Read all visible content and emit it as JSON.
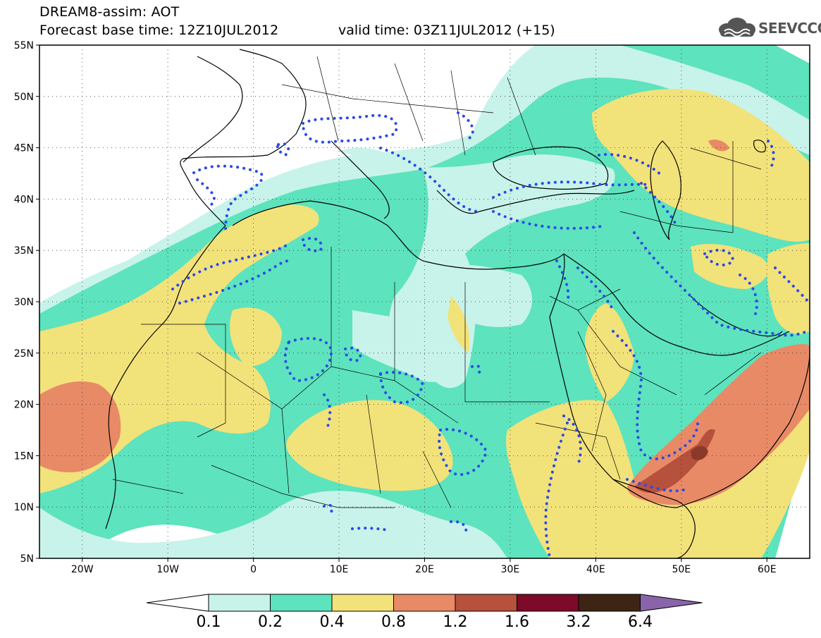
{
  "header": {
    "title": "DREAM8-assim: AOT",
    "forecast_base": "Forecast base time: 12Z10JUL2012",
    "valid_time": "valid time: 03Z11JUL2012 (+15)"
  },
  "logo": {
    "text": "SEEVCCC",
    "icon": "cloud-icon"
  },
  "map": {
    "lon_range": [
      -25,
      65
    ],
    "lat_range": [
      5,
      55
    ],
    "lat_labels": [
      "55N",
      "50N",
      "45N",
      "40N",
      "35N",
      "30N",
      "25N",
      "20N",
      "15N",
      "10N",
      "5N"
    ],
    "lon_labels": [
      "20W",
      "10W",
      "0",
      "10E",
      "20E",
      "30E",
      "40E",
      "50E",
      "60E"
    ],
    "background_color": "#5de3bd"
  },
  "colorbar": {
    "labels": [
      "0.1",
      "0.2",
      "0.4",
      "0.8",
      "1.2",
      "1.6",
      "3.2",
      "6.4"
    ],
    "colors": [
      "#c8f3ea",
      "#5de3bd",
      "#f2e27a",
      "#e88a66",
      "#b5513c",
      "#7c0a28",
      "#3d2414",
      "#8a64aa"
    ],
    "under_color": "#ffffff"
  }
}
